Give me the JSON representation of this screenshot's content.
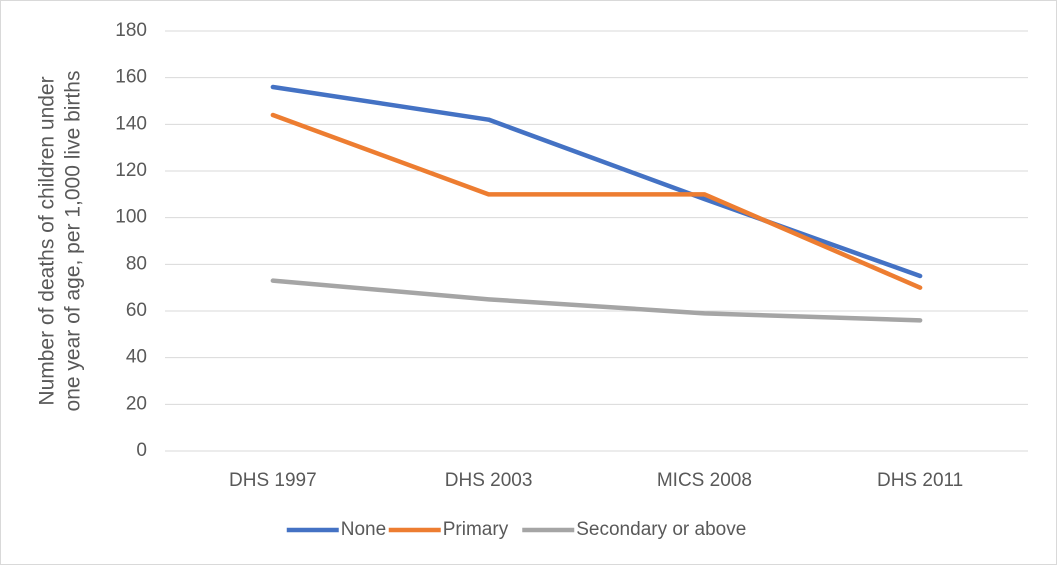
{
  "chart_data": {
    "type": "line",
    "ylabel": [
      "Number of deaths of children under",
      "one year of age, per 1,000 live births"
    ],
    "categories": [
      "DHS 1997",
      "DHS 2003",
      "MICS 2008",
      "DHS 2011"
    ],
    "series": [
      {
        "name": "None",
        "color": "#4472c4",
        "values": [
          156,
          142,
          108,
          75
        ]
      },
      {
        "name": "Primary",
        "color": "#ed7d31",
        "values": [
          144,
          110,
          110,
          70
        ]
      },
      {
        "name": "Secondary or above",
        "color": "#a5a5a5",
        "values": [
          73,
          65,
          59,
          56
        ]
      }
    ],
    "ylim": [
      0,
      180
    ],
    "yticks": [
      0,
      20,
      40,
      60,
      80,
      100,
      120,
      140,
      160,
      180
    ],
    "grid": true,
    "legend": "bottom"
  }
}
